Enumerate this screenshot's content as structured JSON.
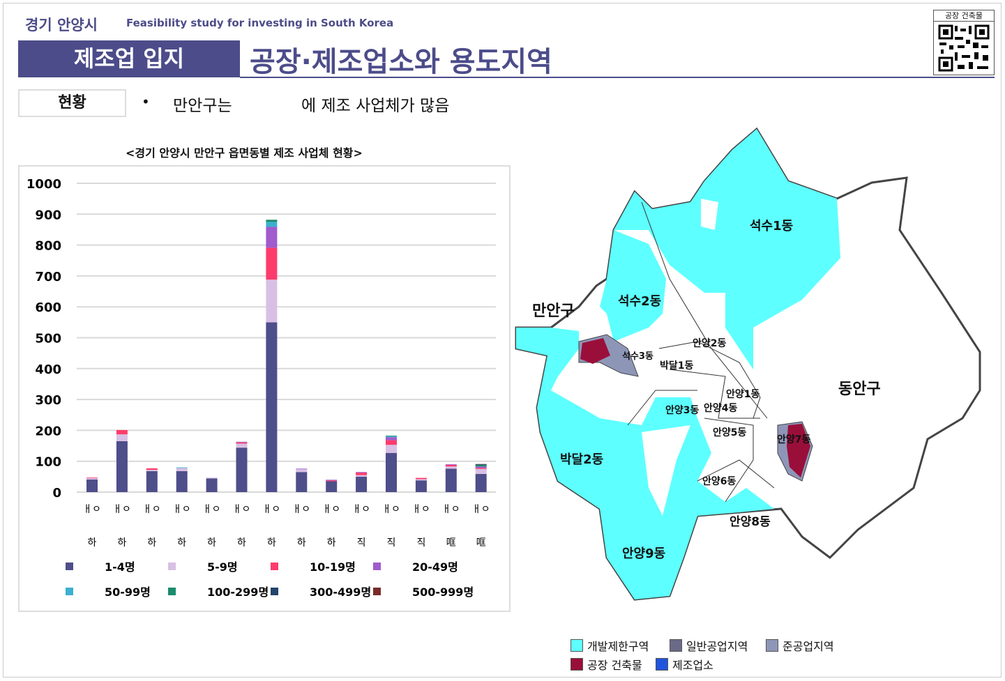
{
  "header": {
    "city": "경기 안양시",
    "subtitle": "Feasibility study for investing in South Korea",
    "section": "제조업 입지",
    "title": "공장·제조업소와 용도지역",
    "qr_label": "공장 건축물"
  },
  "status": {
    "label": "현황",
    "bullet": "•",
    "text_part1": "만안구는",
    "text_part2": "에 제조 사업체가 많음"
  },
  "chart_data": {
    "type": "bar",
    "stacked": true,
    "title": "<경기 안양시 만안구 읍면동별 제조 사업체 현황>",
    "ylim": [
      0,
      1000
    ],
    "yticks": [
      "0",
      "100",
      "200",
      "300",
      "400",
      "500",
      "600",
      "700",
      "800",
      "900",
      "1000"
    ],
    "categories_row1": [
      "ㅐㅇ",
      "ㅐㅇ",
      "ㅐㅇ",
      "ㅐㅇ",
      "ㅐㅇ",
      "ㅐㅇ",
      "ㅐㅇ",
      "ㅐㅇ",
      "ㅐㅇ",
      "ㅐㅇ",
      "ㅐㅇ",
      "ㅐㅇ",
      "ㅐㅇ",
      "ㅐㅇ"
    ],
    "categories_row2": [
      "하",
      "하",
      "하",
      "하",
      "하",
      "하",
      "하",
      "하",
      "하",
      "직",
      "직",
      "직",
      "哐",
      "哐"
    ],
    "series": [
      {
        "name": "1-4명",
        "color": "#4e4e8a",
        "values": [
          41,
          165,
          68,
          68,
          44,
          144,
          550,
          65,
          35,
          50,
          127,
          38,
          76,
          59
        ]
      },
      {
        "name": "5-9명",
        "color": "#d8c0e4",
        "values": [
          4,
          22,
          4,
          10,
          3,
          13,
          138,
          9,
          0,
          5,
          26,
          4,
          7,
          16
        ]
      },
      {
        "name": "10-19명",
        "color": "#fd3c6c",
        "values": [
          2,
          14,
          5,
          0,
          0,
          4,
          103,
          0,
          3,
          8,
          15,
          4,
          5,
          3
        ]
      },
      {
        "name": "20-49명",
        "color": "#a05bcc",
        "values": [
          0,
          0,
          0,
          0,
          0,
          2,
          68,
          2,
          2,
          2,
          10,
          0,
          2,
          5
        ]
      },
      {
        "name": "50-99명",
        "color": "#3bb0d0",
        "values": [
          0,
          0,
          0,
          2,
          0,
          0,
          16,
          0,
          0,
          0,
          3,
          0,
          0,
          0
        ]
      },
      {
        "name": "100-299명",
        "color": "#1a8c6c",
        "values": [
          0,
          0,
          0,
          0,
          0,
          0,
          7,
          0,
          0,
          0,
          2,
          0,
          0,
          5
        ]
      },
      {
        "name": "300-499명",
        "color": "#23446c",
        "values": [
          0,
          0,
          0,
          0,
          0,
          0,
          0,
          0,
          0,
          0,
          0,
          0,
          0,
          2
        ]
      },
      {
        "name": "500-999명",
        "color": "#7a2a2a",
        "values": [
          0,
          0,
          0,
          0,
          0,
          0,
          0,
          0,
          0,
          0,
          0,
          0,
          0,
          1
        ]
      }
    ],
    "grid": true,
    "legend": "bottom"
  },
  "map": {
    "labels": [
      "석수1동",
      "석수2동",
      "만안구",
      "석수3동",
      "안양2동",
      "박달1동",
      "안양1동",
      "동안구",
      "안양3동",
      "안양4동",
      "안양5동",
      "안양7동",
      "박달2동",
      "안양6동",
      "안양8동",
      "안양9동"
    ],
    "legend": [
      {
        "label": "개발제한구역",
        "color": "#5effff"
      },
      {
        "label": "일반공업지역",
        "color": "#6a6a88"
      },
      {
        "label": "준공업지역",
        "color": "#8e96b8"
      },
      {
        "label": "공장 건축물",
        "color": "#9a0f3a"
      },
      {
        "label": "제조업소",
        "color": "#2255dd"
      }
    ]
  }
}
